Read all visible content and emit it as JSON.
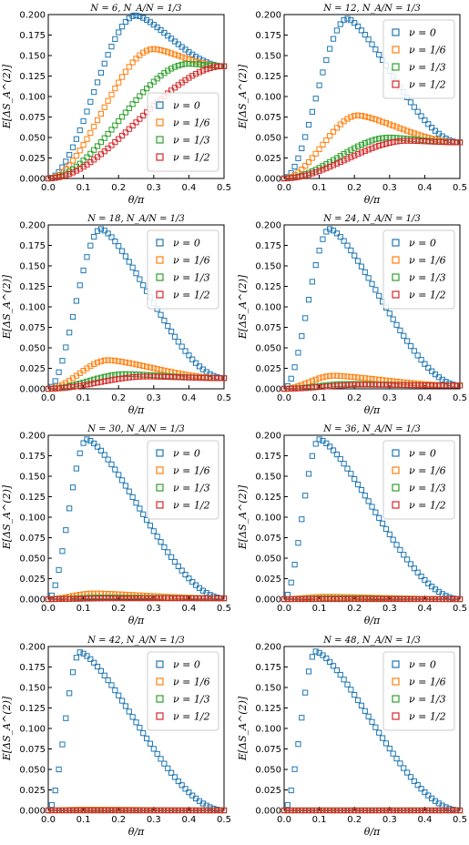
{
  "chart_data": [
    {
      "type": "scatter",
      "title": "N = 6, N_A/N = 1/3",
      "xlabel": "θ/π",
      "ylabel": "E[ΔS_A^(2)]",
      "xlim": [
        0.0,
        0.5
      ],
      "ylim": [
        0.0,
        0.2
      ],
      "legend_position": "lower-right",
      "series": [
        {
          "name": "ν = 0",
          "color": "#1f77b4",
          "peak_x": 0.25,
          "peak_y": 0.199,
          "end_y": 0.137
        },
        {
          "name": "ν = 1/6",
          "color": "#ff7f0e",
          "peak_x": 0.3,
          "peak_y": 0.158,
          "end_y": 0.137
        },
        {
          "name": "ν = 1/3",
          "color": "#2ca02c",
          "peak_x": 0.4,
          "peak_y": 0.14,
          "end_y": 0.137
        },
        {
          "name": "ν = 1/2",
          "color": "#d62728",
          "peak_x": 0.5,
          "peak_y": 0.137,
          "end_y": 0.137
        }
      ]
    },
    {
      "type": "scatter",
      "title": "N = 12, N_A/N = 1/3",
      "xlabel": "θ/π",
      "ylabel": "E[ΔS_A^(2)]",
      "xlim": [
        0.0,
        0.5
      ],
      "ylim": [
        0.0,
        0.2
      ],
      "legend_position": "top-right",
      "series": [
        {
          "name": "ν = 0",
          "color": "#1f77b4",
          "peak_x": 0.18,
          "peak_y": 0.195,
          "end_y": 0.044
        },
        {
          "name": "ν = 1/6",
          "color": "#ff7f0e",
          "peak_x": 0.21,
          "peak_y": 0.077,
          "end_y": 0.044
        },
        {
          "name": "ν = 1/3",
          "color": "#2ca02c",
          "peak_x": 0.3,
          "peak_y": 0.05,
          "end_y": 0.044
        },
        {
          "name": "ν = 1/2",
          "color": "#d62728",
          "peak_x": 0.35,
          "peak_y": 0.046,
          "end_y": 0.044
        }
      ]
    },
    {
      "type": "scatter",
      "title": "N = 18, N_A/N = 1/3",
      "xlabel": "θ/π",
      "ylabel": "E[ΔS_A^(2)]",
      "xlim": [
        0.0,
        0.5
      ],
      "ylim": [
        0.0,
        0.2
      ],
      "legend_position": "top-right",
      "series": [
        {
          "name": "ν = 0",
          "color": "#1f77b4",
          "peak_x": 0.15,
          "peak_y": 0.195,
          "end_y": 0.013
        },
        {
          "name": "ν = 1/6",
          "color": "#ff7f0e",
          "peak_x": 0.17,
          "peak_y": 0.035,
          "end_y": 0.013
        },
        {
          "name": "ν = 1/3",
          "color": "#2ca02c",
          "peak_x": 0.22,
          "peak_y": 0.018,
          "end_y": 0.013
        },
        {
          "name": "ν = 1/2",
          "color": "#d62728",
          "peak_x": 0.28,
          "peak_y": 0.015,
          "end_y": 0.013
        }
      ]
    },
    {
      "type": "scatter",
      "title": "N = 24, N_A/N = 1/3",
      "xlabel": "θ/π",
      "ylabel": "E[ΔS_A^(2)]",
      "xlim": [
        0.0,
        0.5
      ],
      "ylim": [
        0.0,
        0.2
      ],
      "legend_position": "top-right",
      "series": [
        {
          "name": "ν = 0",
          "color": "#1f77b4",
          "peak_x": 0.13,
          "peak_y": 0.195,
          "end_y": 0.004
        },
        {
          "name": "ν = 1/6",
          "color": "#ff7f0e",
          "peak_x": 0.14,
          "peak_y": 0.016,
          "end_y": 0.004
        },
        {
          "name": "ν = 1/3",
          "color": "#2ca02c",
          "peak_x": 0.18,
          "peak_y": 0.006,
          "end_y": 0.004
        },
        {
          "name": "ν = 1/2",
          "color": "#d62728",
          "peak_x": 0.22,
          "peak_y": 0.005,
          "end_y": 0.004
        }
      ]
    },
    {
      "type": "scatter",
      "title": "N = 30, N_A/N = 1/3",
      "xlabel": "θ/π",
      "ylabel": "E[ΔS_A^(2)]",
      "xlim": [
        0.0,
        0.5
      ],
      "ylim": [
        0.0,
        0.2
      ],
      "legend_position": "top-right",
      "series": [
        {
          "name": "ν = 0",
          "color": "#1f77b4",
          "peak_x": 0.11,
          "peak_y": 0.195,
          "end_y": 0.001
        },
        {
          "name": "ν = 1/6",
          "color": "#ff7f0e",
          "peak_x": 0.13,
          "peak_y": 0.007,
          "end_y": 0.001
        },
        {
          "name": "ν = 1/3",
          "color": "#2ca02c",
          "peak_x": 0.15,
          "peak_y": 0.002,
          "end_y": 0.001
        },
        {
          "name": "ν = 1/2",
          "color": "#d62728",
          "peak_x": 0.2,
          "peak_y": 0.001,
          "end_y": 0.001
        }
      ]
    },
    {
      "type": "scatter",
      "title": "N = 36, N_A/N = 1/3",
      "xlabel": "θ/π",
      "ylabel": "E[ΔS_A^(2)]",
      "xlim": [
        0.0,
        0.5
      ],
      "ylim": [
        0.0,
        0.2
      ],
      "legend_position": "top-right",
      "series": [
        {
          "name": "ν = 0",
          "color": "#1f77b4",
          "peak_x": 0.1,
          "peak_y": 0.195,
          "end_y": 0.0
        },
        {
          "name": "ν = 1/6",
          "color": "#ff7f0e",
          "peak_x": 0.12,
          "peak_y": 0.003,
          "end_y": 0.0
        },
        {
          "name": "ν = 1/3",
          "color": "#2ca02c",
          "peak_x": 0.14,
          "peak_y": 0.001,
          "end_y": 0.0
        },
        {
          "name": "ν = 1/2",
          "color": "#d62728",
          "peak_x": 0.16,
          "peak_y": 0.0,
          "end_y": 0.0
        }
      ]
    },
    {
      "type": "scatter",
      "title": "N = 42, N_A/N = 1/3",
      "xlabel": "θ/π",
      "ylabel": "E[ΔS_A^(2)]",
      "xlim": [
        0.0,
        0.5
      ],
      "ylim": [
        0.0,
        0.2
      ],
      "legend_position": "top-right",
      "series": [
        {
          "name": "ν = 0",
          "color": "#1f77b4",
          "peak_x": 0.09,
          "peak_y": 0.193,
          "end_y": 0.0
        },
        {
          "name": "ν = 1/6",
          "color": "#ff7f0e",
          "peak_x": 0.11,
          "peak_y": 0.001,
          "end_y": 0.0
        },
        {
          "name": "ν = 1/3",
          "color": "#2ca02c",
          "peak_x": 0.13,
          "peak_y": 0.0,
          "end_y": 0.0
        },
        {
          "name": "ν = 1/2",
          "color": "#d62728",
          "peak_x": 0.15,
          "peak_y": 0.0,
          "end_y": 0.0
        }
      ]
    },
    {
      "type": "scatter",
      "title": "N = 48, N_A/N = 1/3",
      "xlabel": "θ/π",
      "ylabel": "E[ΔS_A^(2)]",
      "xlim": [
        0.0,
        0.5
      ],
      "ylim": [
        0.0,
        0.2
      ],
      "legend_position": "top-right",
      "series": [
        {
          "name": "ν = 0",
          "color": "#1f77b4",
          "peak_x": 0.09,
          "peak_y": 0.194,
          "end_y": 0.0
        },
        {
          "name": "ν = 1/6",
          "color": "#ff7f0e",
          "peak_x": 0.1,
          "peak_y": 0.0,
          "end_y": 0.0
        },
        {
          "name": "ν = 1/3",
          "color": "#2ca02c",
          "peak_x": 0.12,
          "peak_y": 0.0,
          "end_y": 0.0
        },
        {
          "name": "ν = 1/2",
          "color": "#d62728",
          "peak_x": 0.14,
          "peak_y": 0.0,
          "end_y": 0.0
        }
      ]
    }
  ],
  "shared": {
    "xticks": [
      0.0,
      0.1,
      0.2,
      0.3,
      0.4,
      0.5
    ],
    "xtick_labels": [
      "0.0",
      "0.1",
      "0.2",
      "0.3",
      "0.4",
      "0.5"
    ],
    "yticks": [
      0.0,
      0.025,
      0.05,
      0.075,
      0.1,
      0.125,
      0.15,
      0.175,
      0.2
    ],
    "ytick_labels": [
      "0.000",
      "0.025",
      "0.050",
      "0.075",
      "0.100",
      "0.125",
      "0.150",
      "0.175",
      "0.200"
    ],
    "points_per_series": 51
  }
}
